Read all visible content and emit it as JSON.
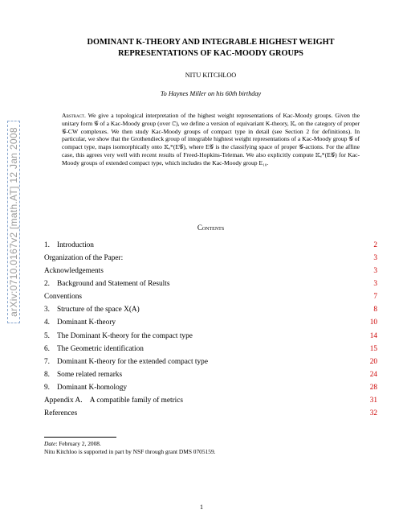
{
  "arxiv": "arXiv:0710.0167v2  [math.AT]  12 Jan 2008",
  "title_line1": "DOMINANT K-THEORY AND INTEGRABLE HIGHEST WEIGHT",
  "title_line2": "REPRESENTATIONS OF KAC-MOODY GROUPS",
  "author": "NITU KITCHLOO",
  "dedication": "To Haynes Miller on his 60th birthday",
  "abstract_label": "Abstract.",
  "abstract_body": " We give a topological interpretation of the highest weight representations of Kac-Moody groups. Given the unitary form 𝒢 of a Kac-Moody group (over ℂ), we define a version of equivariant K-theory, 𝕂ₑ on the category of proper 𝒢-CW complexes. We then study Kac-Moody groups of compact type in detail (see Section 2 for definitions). In particular, we show that the Grothendieck group of integrable hightest weight representations of a Kac-Moody group 𝒢 of compact type, maps isomorphically onto 𝕂ₑ*(E𝒢), where E𝒢 is the classifying space of proper 𝒢-actions. For the affine case, this agrees very well with recent results of Freed-Hopkins-Teleman. We also explicitly compute 𝕂ₑ*(E𝒢) for Kac-Moody groups of extended compact type, which includes the Kac-Moody group E₁₀.",
  "contents_heading": "Contents",
  "toc": [
    {
      "num": "1.",
      "label": "Introduction",
      "page": "2"
    },
    {
      "num": "",
      "label": "Organization of the Paper:",
      "page": "3"
    },
    {
      "num": "",
      "label": "Acknowledgements",
      "page": "3"
    },
    {
      "num": "2.",
      "label": "Background and Statement of Results",
      "page": "3"
    },
    {
      "num": "",
      "label": "Conventions",
      "page": "7"
    },
    {
      "num": "3.",
      "label": "Structure of the space X(A)",
      "page": "8"
    },
    {
      "num": "4.",
      "label": "Dominant K-theory",
      "page": "10"
    },
    {
      "num": "5.",
      "label": "The Dominant K-theory for the compact type",
      "page": "14"
    },
    {
      "num": "6.",
      "label": "The Geometric identification",
      "page": "15"
    },
    {
      "num": "7.",
      "label": "Dominant K-theory for the extended compact type",
      "page": "20"
    },
    {
      "num": "8.",
      "label": "Some related remarks",
      "page": "24"
    },
    {
      "num": "9.",
      "label": "Dominant K-homology",
      "page": "28"
    },
    {
      "num": "",
      "label": "Appendix A. A compatible family of metrics",
      "page": "31"
    },
    {
      "num": "",
      "label": "References",
      "page": "32"
    }
  ],
  "date_label": "Date",
  "date_value": ": February 2, 2008.",
  "footer_note": "Nitu Kitchloo is supported in part by NSF through grant DMS 0705159.",
  "page_number": "1"
}
